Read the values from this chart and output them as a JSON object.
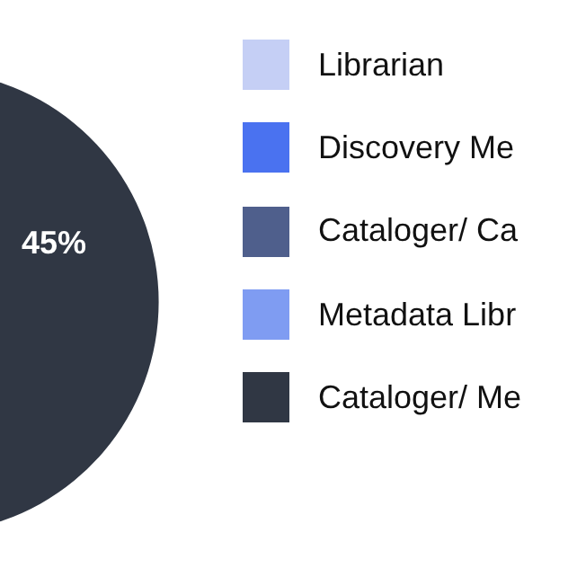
{
  "chart_data": {
    "type": "pie",
    "categories": [
      "Librarian",
      "Discovery Me",
      "Cataloger/ Ca",
      "Metadata Libr",
      "Cataloger/ Me"
    ],
    "values": [
      null,
      null,
      null,
      null,
      45
    ],
    "colors": [
      "#c5cff5",
      "#4a72f0",
      "#4f5f8c",
      "#7f9cf2",
      "#303744"
    ],
    "value_labels": [
      null,
      null,
      null,
      null,
      "45%"
    ],
    "legend": "right"
  }
}
